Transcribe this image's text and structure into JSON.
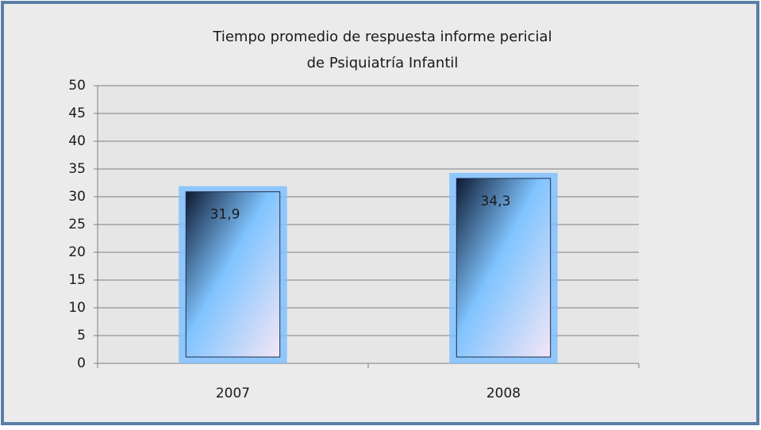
{
  "chart_data": {
    "type": "bar",
    "title": [
      "Tiempo promedio de respuesta informe pericial",
      "de Psiquiatría Infantil"
    ],
    "categories": [
      "2007",
      "2008"
    ],
    "values": [
      31.9,
      34.3
    ],
    "value_labels": [
      "31,9",
      "34,3"
    ],
    "color": "#7fbfff",
    "ylim": [
      0,
      50
    ],
    "yticks": [
      0,
      5,
      10,
      15,
      20,
      25,
      30,
      35,
      40,
      45,
      50
    ],
    "grid": true
  }
}
